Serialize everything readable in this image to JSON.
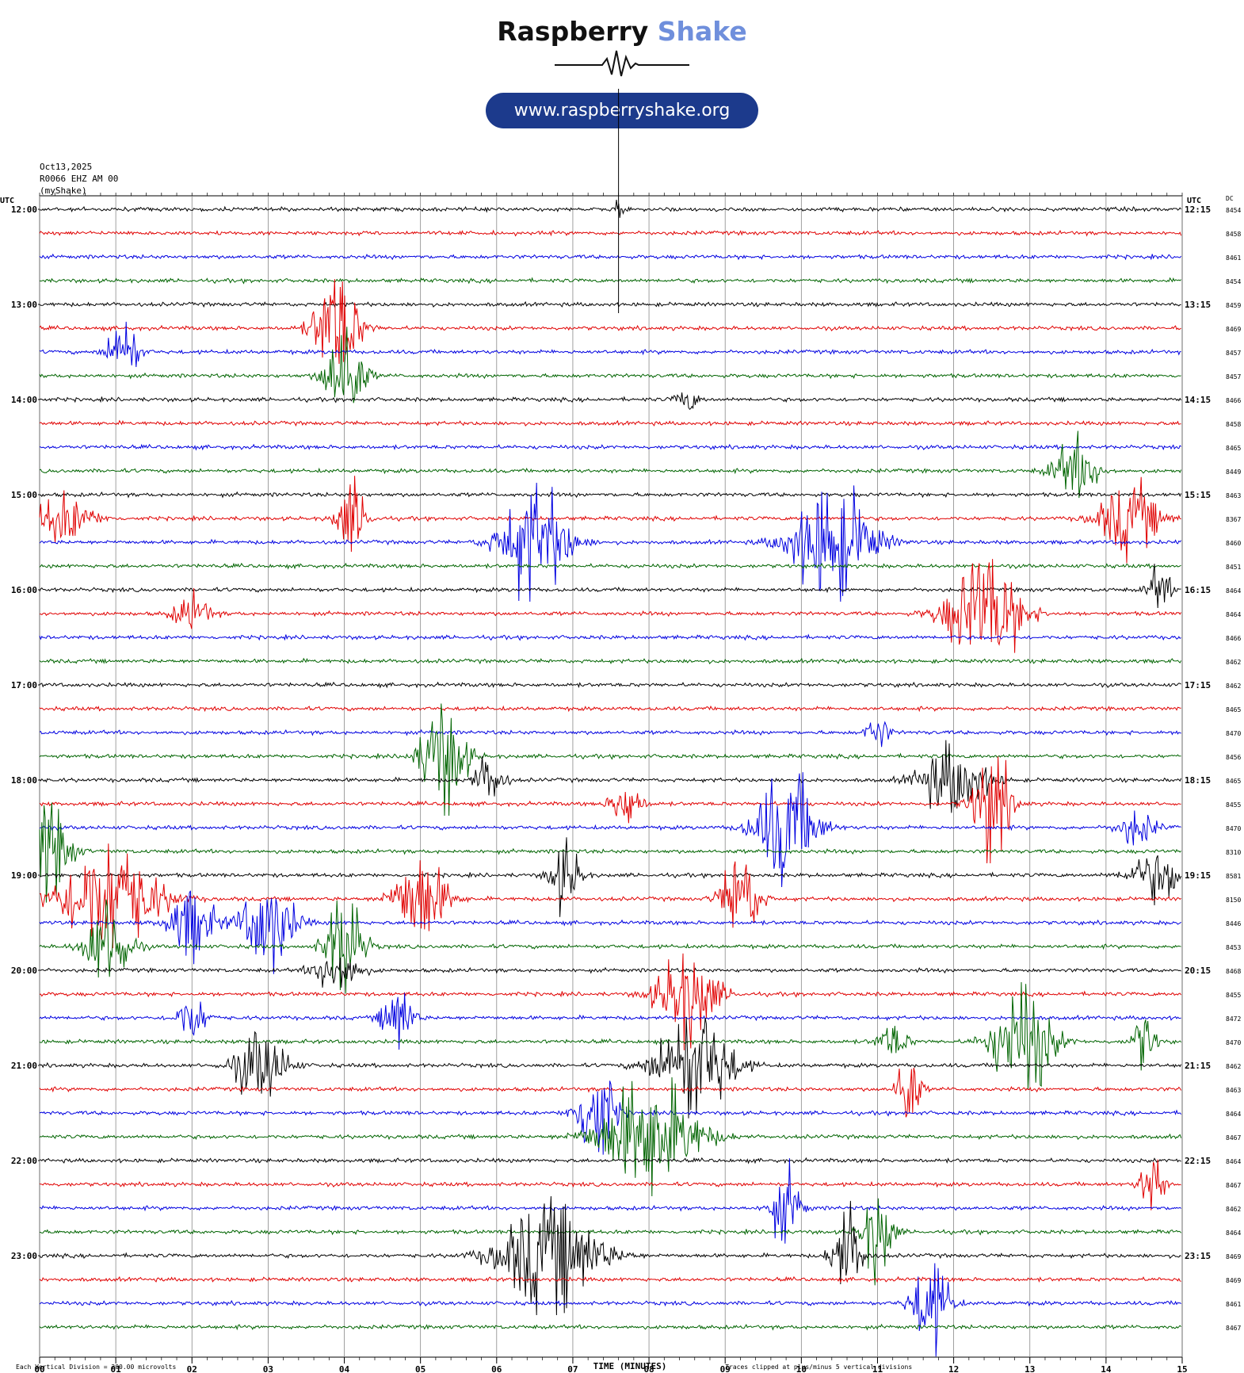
{
  "brand": {
    "name_part1": "Raspberry",
    "name_part2": "Shake",
    "url": "www.raspberryshake.org"
  },
  "header": {
    "date": "Oct13,2025",
    "station": "R0066 EHZ AM 00",
    "network": "(myShake)"
  },
  "chart_data": {
    "type": "line",
    "title": "",
    "xlabel": "TIME (MINUTES)",
    "left_axis_title": "UTC",
    "right_axis_title": "UTC",
    "dc_title": "DC",
    "xlim": [
      0,
      15
    ],
    "x_tick_labels": [
      "00",
      "01",
      "02",
      "03",
      "04",
      "05",
      "06",
      "07",
      "08",
      "09",
      "10",
      "11",
      "12",
      "13",
      "14",
      "15"
    ],
    "left_time_labels": [
      "12:00",
      "13:00",
      "14:00",
      "15:00",
      "16:00",
      "17:00",
      "18:00",
      "19:00",
      "20:00",
      "21:00",
      "22:00",
      "23:00"
    ],
    "right_time_labels": [
      "12:15",
      "13:15",
      "14:15",
      "15:15",
      "16:15",
      "17:15",
      "18:15",
      "19:15",
      "20:15",
      "21:15",
      "22:15",
      "23:15"
    ],
    "trace_colors": [
      "#000000",
      "#e00000",
      "#0000e0",
      "#006400"
    ],
    "dc_offsets": [
      8454,
      8458,
      8461,
      8454,
      8459,
      8469,
      8457,
      8457,
      8466,
      8458,
      8465,
      8449,
      8463,
      8367,
      8460,
      8451,
      8464,
      8464,
      8466,
      8462,
      8462,
      8465,
      8470,
      8456,
      8465,
      8455,
      8470,
      8310,
      8581,
      8150,
      8446,
      8453,
      8468,
      8455,
      8472,
      8470,
      8462,
      8463,
      8464,
      8467,
      8464,
      8467,
      8462,
      8464,
      8469,
      8469,
      8461,
      8467
    ],
    "events": [
      {
        "row": 7,
        "minute": 4.0,
        "amp": 5,
        "len": 0.5
      },
      {
        "row": 5,
        "minute": 3.9,
        "amp": 5,
        "len": 0.6
      },
      {
        "row": 6,
        "minute": 1.1,
        "amp": 3,
        "len": 0.4
      },
      {
        "row": 14,
        "minute": 6.5,
        "amp": 5,
        "len": 0.9
      },
      {
        "row": 14,
        "minute": 10.4,
        "amp": 5,
        "len": 1.1
      },
      {
        "row": 13,
        "minute": 0.3,
        "amp": 2,
        "len": 0.8
      },
      {
        "row": 13,
        "minute": 4.1,
        "amp": 3,
        "len": 0.4
      },
      {
        "row": 17,
        "minute": 2.0,
        "amp": 1.5,
        "len": 0.5
      },
      {
        "row": 17,
        "minute": 12.4,
        "amp": 5,
        "len": 1.0
      },
      {
        "row": 11,
        "minute": 13.6,
        "amp": 2.5,
        "len": 0.6
      },
      {
        "row": 13,
        "minute": 14.3,
        "amp": 3,
        "len": 0.8
      },
      {
        "row": 16,
        "minute": 14.7,
        "amp": 2,
        "len": 0.3
      },
      {
        "row": 22,
        "minute": 11.0,
        "amp": 1.5,
        "len": 0.3
      },
      {
        "row": 23,
        "minute": 5.3,
        "amp": 5,
        "len": 0.6
      },
      {
        "row": 24,
        "minute": 5.9,
        "amp": 2,
        "len": 0.4
      },
      {
        "row": 25,
        "minute": 7.7,
        "amp": 2,
        "len": 0.4
      },
      {
        "row": 26,
        "minute": 9.8,
        "amp": 5,
        "len": 0.8
      },
      {
        "row": 24,
        "minute": 12.0,
        "amp": 3,
        "len": 0.9
      },
      {
        "row": 25,
        "minute": 12.5,
        "amp": 5,
        "len": 0.5
      },
      {
        "row": 26,
        "minute": 14.4,
        "amp": 1.5,
        "len": 0.5
      },
      {
        "row": 27,
        "minute": 0.1,
        "amp": 4,
        "len": 0.6
      },
      {
        "row": 29,
        "minute": 0.9,
        "amp": 5,
        "len": 1.3
      },
      {
        "row": 31,
        "minute": 0.9,
        "amp": 4,
        "len": 0.6
      },
      {
        "row": 30,
        "minute": 2.0,
        "amp": 3,
        "len": 0.6
      },
      {
        "row": 30,
        "minute": 3.0,
        "amp": 4,
        "len": 0.7
      },
      {
        "row": 31,
        "minute": 4.0,
        "amp": 5,
        "len": 0.5
      },
      {
        "row": 29,
        "minute": 5.0,
        "amp": 4,
        "len": 0.7
      },
      {
        "row": 28,
        "minute": 6.9,
        "amp": 3,
        "len": 0.4
      },
      {
        "row": 29,
        "minute": 9.2,
        "amp": 4,
        "len": 0.5
      },
      {
        "row": 28,
        "minute": 14.7,
        "amp": 2,
        "len": 0.8
      },
      {
        "row": 32,
        "minute": 3.9,
        "amp": 2,
        "len": 0.6
      },
      {
        "row": 34,
        "minute": 2.0,
        "amp": 2,
        "len": 0.4
      },
      {
        "row": 34,
        "minute": 4.7,
        "amp": 3,
        "len": 0.4
      },
      {
        "row": 33,
        "minute": 8.5,
        "amp": 4,
        "len": 0.8
      },
      {
        "row": 35,
        "minute": 11.2,
        "amp": 1.5,
        "len": 0.4
      },
      {
        "row": 35,
        "minute": 12.9,
        "amp": 5,
        "len": 0.8
      },
      {
        "row": 35,
        "minute": 14.5,
        "amp": 2.5,
        "len": 0.3
      },
      {
        "row": 36,
        "minute": 2.9,
        "amp": 3,
        "len": 0.7
      },
      {
        "row": 36,
        "minute": 8.6,
        "amp": 5,
        "len": 1.0
      },
      {
        "row": 37,
        "minute": 11.4,
        "amp": 4,
        "len": 0.3
      },
      {
        "row": 38,
        "minute": 7.3,
        "amp": 5,
        "len": 0.5
      },
      {
        "row": 39,
        "minute": 8.0,
        "amp": 5,
        "len": 1.3
      },
      {
        "row": 41,
        "minute": 14.6,
        "amp": 3,
        "len": 0.3
      },
      {
        "row": 42,
        "minute": 9.8,
        "amp": 3,
        "len": 0.4
      },
      {
        "row": 43,
        "minute": 11.0,
        "amp": 4,
        "len": 0.4
      },
      {
        "row": 44,
        "minute": 6.7,
        "amp": 5,
        "len": 1.3
      },
      {
        "row": 44,
        "minute": 10.6,
        "amp": 4,
        "len": 0.4
      },
      {
        "row": 46,
        "minute": 11.7,
        "amp": 4,
        "len": 0.5
      },
      {
        "row": 0,
        "minute": 7.6,
        "amp": 1,
        "len": 0.1
      },
      {
        "row": 8,
        "minute": 8.5,
        "amp": 1,
        "len": 0.3
      }
    ]
  },
  "footer": {
    "scale_note": "Each Vertical Division = 200.00 microvolts",
    "clip_note": "Traces clipped at plus/minus 5 vertical divisions",
    "time_label": "TIME (MINUTES)"
  }
}
